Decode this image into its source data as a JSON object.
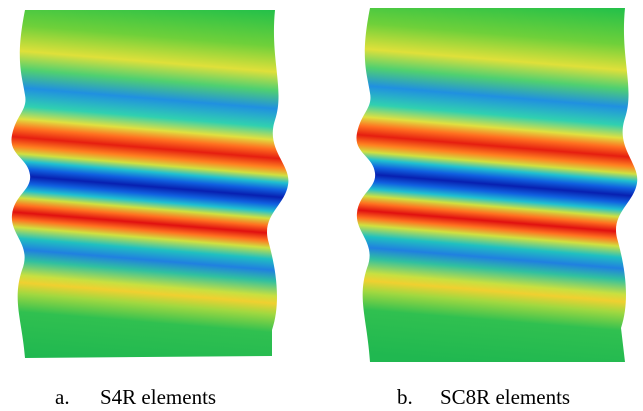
{
  "figure": {
    "panels": [
      {
        "label": "a.",
        "caption": "S4R elements"
      },
      {
        "label": "b.",
        "caption": "SC8R elements"
      }
    ]
  }
}
